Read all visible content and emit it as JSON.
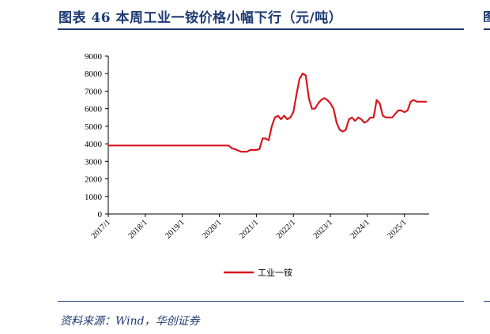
{
  "header": {
    "title": "图表 46   本周工业一铵价格小幅下行（元/吨）",
    "title_right_fragment": "图"
  },
  "footer": {
    "source": "资料来源：Wind，华创证券"
  },
  "colors": {
    "series": "#d7161e",
    "accent": "#1f3b73"
  },
  "chart_data": {
    "type": "line",
    "title": "",
    "xlabel": "",
    "ylabel": "",
    "ylim": [
      0,
      9000
    ],
    "yticks": [
      0,
      1000,
      2000,
      3000,
      4000,
      5000,
      6000,
      7000,
      8000,
      9000
    ],
    "ytick_labels": [
      "0",
      "1000",
      "2000",
      "3000",
      "4000",
      "5000",
      "6000",
      "7000",
      "8000",
      "9000"
    ],
    "xlim": [
      "2017-01",
      "2025-09"
    ],
    "xtick_labels": [
      "2017/1",
      "2018/1",
      "2019/1",
      "2020/1",
      "2021/1",
      "2022/1",
      "2023/1",
      "2024/1",
      "2025/1"
    ],
    "grid": false,
    "legend": "bottom-center",
    "series": [
      {
        "name": "工业一铵",
        "x": [
          "2017-01",
          "2018-01",
          "2019-01",
          "2020-01",
          "2020-04",
          "2020-05",
          "2020-06",
          "2020-08",
          "2020-10",
          "2020-11",
          "2020-12",
          "2021-01",
          "2021-02",
          "2021-03",
          "2021-04",
          "2021-05",
          "2021-06",
          "2021-07",
          "2021-08",
          "2021-09",
          "2021-10",
          "2021-11",
          "2021-12",
          "2022-01",
          "2022-02",
          "2022-03",
          "2022-04",
          "2022-05",
          "2022-06",
          "2022-07",
          "2022-08",
          "2022-09",
          "2022-10",
          "2022-11",
          "2022-12",
          "2023-01",
          "2023-02",
          "2023-03",
          "2023-04",
          "2023-05",
          "2023-06",
          "2023-07",
          "2023-08",
          "2023-09",
          "2023-10",
          "2023-11",
          "2023-12",
          "2024-01",
          "2024-02",
          "2024-03",
          "2024-04",
          "2024-05",
          "2024-06",
          "2024-07",
          "2024-08",
          "2024-09",
          "2024-10",
          "2024-11",
          "2024-12",
          "2025-01",
          "2025-02",
          "2025-03",
          "2025-04",
          "2025-05",
          "2025-06",
          "2025-07",
          "2025-08"
        ],
        "values": [
          3900,
          3900,
          3900,
          3900,
          3900,
          3750,
          3700,
          3550,
          3550,
          3650,
          3650,
          3650,
          3700,
          4300,
          4300,
          4200,
          5000,
          5500,
          5600,
          5400,
          5600,
          5400,
          5500,
          5800,
          6800,
          7700,
          8000,
          7900,
          6600,
          6000,
          6000,
          6300,
          6500,
          6600,
          6500,
          6300,
          6000,
          5200,
          4800,
          4700,
          4800,
          5400,
          5500,
          5300,
          5500,
          5400,
          5200,
          5300,
          5500,
          5500,
          6500,
          6300,
          5600,
          5500,
          5500,
          5500,
          5700,
          5900,
          5900,
          5800,
          5900,
          6400,
          6500,
          6400,
          6400,
          6400,
          6400
        ]
      }
    ]
  }
}
